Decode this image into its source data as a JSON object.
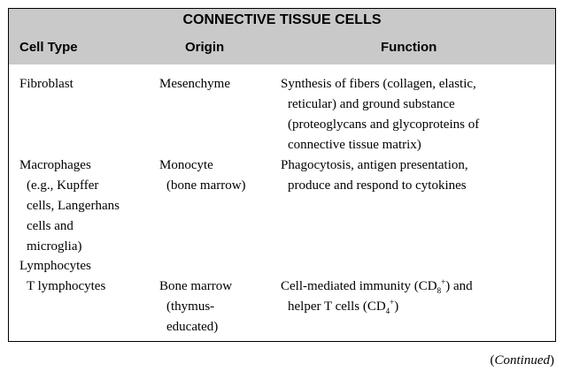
{
  "table": {
    "title": "CONNECTIVE TISSUE CELLS",
    "columns": [
      "Cell Type",
      "Origin",
      "Function"
    ],
    "rows": [
      {
        "cell_type": [
          "Fibroblast"
        ],
        "origin": [
          "Mesenchyme"
        ],
        "function": [
          "Synthesis of fibers (collagen, elastic,",
          "reticular) and ground substance",
          "(proteoglycans and glycoproteins of",
          "connective tissue matrix)"
        ]
      },
      {
        "cell_type": [
          "Macrophages",
          "(e.g., Kupffer",
          "cells, Langerhans",
          "cells and",
          "microglia)"
        ],
        "origin": [
          "Monocyte",
          "(bone marrow)"
        ],
        "function": [
          "Phagocytosis, antigen presentation,",
          "produce and respond to cytokines"
        ]
      },
      {
        "cell_type": [
          "Lymphocytes"
        ],
        "origin": [],
        "function": []
      },
      {
        "cell_type": [
          "T lymphocytes"
        ],
        "origin": [
          "Bone marrow",
          "(thymus-",
          "educated)"
        ],
        "function": {
          "line1_prefix": "Cell-mediated immunity (CD",
          "line1_sub": "8",
          "line1_sup": "+",
          "line1_suffix": ") and",
          "line2_prefix": "helper T cells (CD",
          "line2_sub": "4",
          "line2_sup": "+",
          "line2_suffix": ")"
        }
      }
    ]
  },
  "footer": {
    "continued": "Continued"
  }
}
